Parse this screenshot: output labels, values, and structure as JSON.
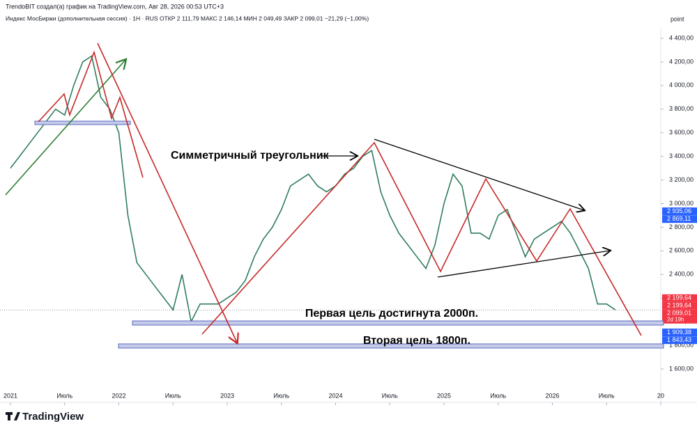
{
  "header": {
    "credit": "TrendoBIT создал(а) график на TradingView.com, Авг 28, 2026 00:53 UTC+3",
    "legend": "Индекс МосБиржи (дополнительная сессия) · 1H · RUS  ОТКР 2 111,79  МАКС 2 146,14  МИН 2 049,49  ЗАКР 2 099,01  −21,29 (−1,00%)",
    "axis_unit": "point"
  },
  "brand": "TradingView",
  "chart_data": {
    "type": "line",
    "color": "#2f7d5c",
    "annotations": [
      "Симметричный треугольник",
      "Первая цель достигнута 2000п.",
      "Вторая цель 1800п."
    ],
    "x": [
      "2021-01",
      "2021-02",
      "2021-03",
      "2021-04",
      "2021-05",
      "2021-06",
      "2021-07",
      "2021-08",
      "2021-09",
      "2021-10",
      "2021-11",
      "2021-12",
      "2022-01",
      "2022-02",
      "2022-03",
      "2022-04",
      "2022-05",
      "2022-06",
      "2022-07",
      "2022-08",
      "2022-09",
      "2022-10",
      "2022-11",
      "2022-12",
      "2023-01",
      "2023-02",
      "2023-03",
      "2023-04",
      "2023-05",
      "2023-06",
      "2023-07",
      "2023-08",
      "2023-09",
      "2023-10",
      "2023-11",
      "2023-12",
      "2024-01",
      "2024-02",
      "2024-03",
      "2024-04",
      "2024-05",
      "2024-06",
      "2024-07",
      "2024-08",
      "2024-09",
      "2024-10",
      "2024-11",
      "2024-12",
      "2025-01",
      "2025-02",
      "2025-03",
      "2025-04",
      "2025-05",
      "2025-06",
      "2025-07",
      "2025-08",
      "2025-09",
      "2025-10",
      "2025-11",
      "2025-12",
      "2026-01",
      "2026-02",
      "2026-03",
      "2026-04",
      "2026-05",
      "2026-06",
      "2026-07",
      "2026-08"
    ],
    "values": [
      3300,
      3400,
      3500,
      3600,
      3700,
      3800,
      3750,
      4000,
      4200,
      4250,
      3900,
      3800,
      3600,
      2900,
      2500,
      2400,
      2300,
      2200,
      2100,
      2400,
      2000,
      2150,
      2150,
      2150,
      2200,
      2250,
      2350,
      2550,
      2700,
      2800,
      2950,
      3150,
      3200,
      3250,
      3150,
      3100,
      3150,
      3250,
      3300,
      3400,
      3450,
      3100,
      2900,
      2750,
      2650,
      2550,
      2450,
      2650,
      3000,
      3250,
      3150,
      2750,
      2750,
      2700,
      2900,
      2950,
      2750,
      2550,
      2700,
      2750,
      2800,
      2850,
      2750,
      2600,
      2450,
      2150,
      2150,
      2099.01
    ],
    "xlim": [
      "2021-01",
      "2027-01"
    ],
    "xticks": [
      {
        "value": "2021-01",
        "label": "2021"
      },
      {
        "value": "2021-07",
        "label": "Июль"
      },
      {
        "value": "2022-01",
        "label": "2022"
      },
      {
        "value": "2022-07",
        "label": "Июль"
      },
      {
        "value": "2023-01",
        "label": "2023"
      },
      {
        "value": "2023-07",
        "label": "Июль"
      },
      {
        "value": "2024-01",
        "label": "2024"
      },
      {
        "value": "2024-07",
        "label": "Июль"
      },
      {
        "value": "2025-01",
        "label": "2025"
      },
      {
        "value": "2025-07",
        "label": "Июль"
      },
      {
        "value": "2026-01",
        "label": "2026"
      },
      {
        "value": "2026-07",
        "label": "Июль"
      },
      {
        "value": "2027-01",
        "label": "20"
      }
    ],
    "ylim": [
      1600,
      4400
    ],
    "yticks": [
      {
        "value": 1600,
        "label": "1 600,00"
      },
      {
        "value": 1800,
        "label": "1 800,00"
      },
      {
        "value": 2000,
        "label": "2 000,00"
      },
      {
        "value": 2200,
        "label": "2 200,00"
      },
      {
        "value": 2400,
        "label": "2 400,00"
      },
      {
        "value": 2600,
        "label": "2 600,00"
      },
      {
        "value": 2800,
        "label": "2 800,00"
      },
      {
        "value": 3000,
        "label": "3 000,00"
      },
      {
        "value": 3200,
        "label": "3 200,00"
      },
      {
        "value": 3400,
        "label": "3 400,00"
      },
      {
        "value": 3600,
        "label": "3 600,00"
      },
      {
        "value": 3800,
        "label": "3 800,00"
      },
      {
        "value": 4000,
        "label": "4 000,00"
      },
      {
        "value": 4200,
        "label": "4 200,00"
      },
      {
        "value": 4400,
        "label": "4 400,00"
      }
    ],
    "price_labels": [
      {
        "value": 2935.06,
        "label": "2 935,06",
        "color": "#2962ff"
      },
      {
        "value": 2869.11,
        "label": "2 869,11",
        "color": "#2962ff"
      },
      {
        "value": 2199.64,
        "label": "2 199,64",
        "color": "#f23645"
      },
      {
        "value": 2199.64,
        "label": "2 199,64",
        "color": "#f23645"
      },
      {
        "value": 2099.01,
        "label": "2 099,01",
        "color": "#f23645",
        "sublabel": "2d 19h"
      },
      {
        "value": 1909.38,
        "label": "1 909,38",
        "color": "#2962ff"
      },
      {
        "value": 1843.43,
        "label": "1 843,43",
        "color": "#2962ff"
      }
    ]
  }
}
